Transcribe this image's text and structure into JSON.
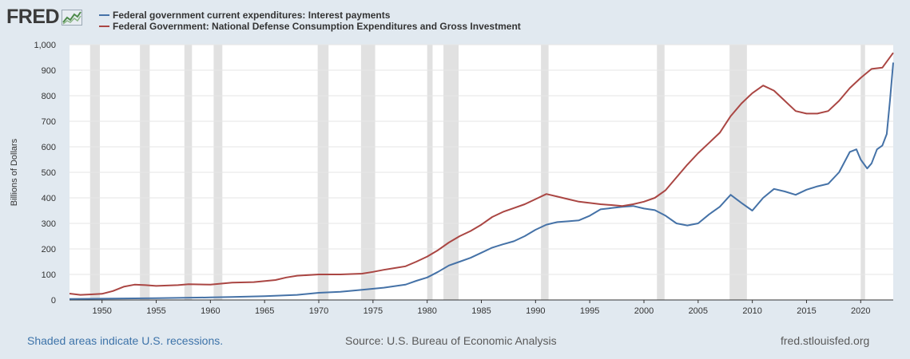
{
  "header": {
    "logo_text": "FRED"
  },
  "footer": {
    "recession_note": "Shaded areas indicate U.S. recessions.",
    "source": "Source: U.S. Bureau of Economic Analysis",
    "site": "fred.stlouisfed.org"
  },
  "colors": {
    "interest": "#4572a7",
    "defense": "#aa4643",
    "recession": "#e1e1e1",
    "link": "#3d73a9",
    "footer_gray": "#595959"
  },
  "chart_data": {
    "type": "line",
    "title": "",
    "xlabel": "",
    "ylabel": "Billions of Dollars",
    "xlim": [
      1947.0,
      2023.0
    ],
    "ylim": [
      0,
      1000
    ],
    "yticks": [
      0,
      100,
      200,
      300,
      400,
      500,
      600,
      700,
      800,
      900,
      1000
    ],
    "ytick_labels": [
      "0",
      "100",
      "200",
      "300",
      "400",
      "500",
      "600",
      "700",
      "800",
      "900",
      "1,000"
    ],
    "xticks": [
      1950,
      1955,
      1960,
      1965,
      1970,
      1975,
      1980,
      1985,
      1990,
      1995,
      2000,
      2005,
      2010,
      2015,
      2020
    ],
    "xtick_labels": [
      "1950",
      "1955",
      "1960",
      "1965",
      "1970",
      "1975",
      "1980",
      "1985",
      "1990",
      "1995",
      "2000",
      "2005",
      "2010",
      "2015",
      "2020"
    ],
    "grid": "horizontal",
    "recessions": [
      [
        1948.9,
        1949.8
      ],
      [
        1953.5,
        1954.4
      ],
      [
        1957.6,
        1958.3
      ],
      [
        1960.3,
        1961.1
      ],
      [
        1969.9,
        1970.9
      ],
      [
        1973.9,
        1975.2
      ],
      [
        1980.0,
        1980.5
      ],
      [
        1981.5,
        1982.9
      ],
      [
        1990.5,
        1991.2
      ],
      [
        2001.2,
        2001.9
      ],
      [
        2007.9,
        2009.5
      ],
      [
        2020.0,
        2020.4
      ]
    ],
    "series": [
      {
        "name": "Federal government current expenditures: Interest payments",
        "color": "#4572a7",
        "points": [
          [
            1947.0,
            4
          ],
          [
            1950,
            5
          ],
          [
            1955,
            7
          ],
          [
            1960,
            10
          ],
          [
            1962,
            12
          ],
          [
            1965,
            15
          ],
          [
            1968,
            20
          ],
          [
            1970,
            28
          ],
          [
            1972,
            32
          ],
          [
            1974,
            40
          ],
          [
            1976,
            48
          ],
          [
            1978,
            60
          ],
          [
            1979,
            75
          ],
          [
            1980,
            88
          ],
          [
            1981,
            110
          ],
          [
            1982,
            135
          ],
          [
            1983,
            150
          ],
          [
            1984,
            165
          ],
          [
            1985,
            185
          ],
          [
            1986,
            205
          ],
          [
            1987,
            218
          ],
          [
            1988,
            230
          ],
          [
            1989,
            250
          ],
          [
            1990,
            275
          ],
          [
            1991,
            295
          ],
          [
            1992,
            305
          ],
          [
            1993,
            308
          ],
          [
            1994,
            312
          ],
          [
            1995,
            330
          ],
          [
            1996,
            355
          ],
          [
            1997,
            360
          ],
          [
            1998,
            365
          ],
          [
            1999,
            368
          ],
          [
            2000,
            358
          ],
          [
            2001,
            352
          ],
          [
            2002,
            330
          ],
          [
            2003,
            300
          ],
          [
            2004,
            292
          ],
          [
            2005,
            300
          ],
          [
            2006,
            335
          ],
          [
            2007,
            365
          ],
          [
            2008,
            412
          ],
          [
            2009,
            380
          ],
          [
            2010,
            350
          ],
          [
            2011,
            400
          ],
          [
            2012,
            435
          ],
          [
            2013,
            425
          ],
          [
            2014,
            412
          ],
          [
            2015,
            432
          ],
          [
            2016,
            445
          ],
          [
            2017,
            455
          ],
          [
            2018,
            500
          ],
          [
            2019,
            580
          ],
          [
            2019.6,
            590
          ],
          [
            2020.0,
            550
          ],
          [
            2020.6,
            515
          ],
          [
            2021.0,
            535
          ],
          [
            2021.5,
            590
          ],
          [
            2022.0,
            605
          ],
          [
            2022.4,
            650
          ],
          [
            2022.7,
            780
          ],
          [
            2023.0,
            930
          ]
        ]
      },
      {
        "name": "Federal Government: National Defense Consumption Expenditures and Gross Investment",
        "color": "#aa4643",
        "points": [
          [
            1947.0,
            25
          ],
          [
            1948,
            20
          ],
          [
            1949,
            22
          ],
          [
            1950,
            24
          ],
          [
            1951,
            35
          ],
          [
            1952,
            52
          ],
          [
            1953,
            60
          ],
          [
            1954,
            58
          ],
          [
            1955,
            55
          ],
          [
            1957,
            58
          ],
          [
            1958,
            62
          ],
          [
            1960,
            60
          ],
          [
            1962,
            68
          ],
          [
            1964,
            70
          ],
          [
            1966,
            78
          ],
          [
            1967,
            88
          ],
          [
            1968,
            95
          ],
          [
            1970,
            100
          ],
          [
            1972,
            100
          ],
          [
            1974,
            103
          ],
          [
            1975,
            110
          ],
          [
            1976,
            118
          ],
          [
            1977,
            125
          ],
          [
            1978,
            132
          ],
          [
            1979,
            150
          ],
          [
            1980,
            170
          ],
          [
            1981,
            195
          ],
          [
            1982,
            225
          ],
          [
            1983,
            250
          ],
          [
            1984,
            270
          ],
          [
            1985,
            295
          ],
          [
            1986,
            325
          ],
          [
            1987,
            345
          ],
          [
            1988,
            360
          ],
          [
            1989,
            375
          ],
          [
            1990,
            395
          ],
          [
            1991,
            415
          ],
          [
            1992,
            405
          ],
          [
            1993,
            395
          ],
          [
            1994,
            385
          ],
          [
            1995,
            380
          ],
          [
            1996,
            375
          ],
          [
            1997,
            372
          ],
          [
            1998,
            368
          ],
          [
            1999,
            375
          ],
          [
            2000,
            385
          ],
          [
            2001,
            400
          ],
          [
            2002,
            430
          ],
          [
            2003,
            480
          ],
          [
            2004,
            530
          ],
          [
            2005,
            575
          ],
          [
            2006,
            615
          ],
          [
            2007,
            655
          ],
          [
            2008,
            720
          ],
          [
            2009,
            770
          ],
          [
            2010,
            810
          ],
          [
            2011,
            840
          ],
          [
            2012,
            820
          ],
          [
            2013,
            780
          ],
          [
            2014,
            740
          ],
          [
            2015,
            730
          ],
          [
            2016,
            730
          ],
          [
            2017,
            740
          ],
          [
            2018,
            780
          ],
          [
            2019,
            830
          ],
          [
            2020,
            870
          ],
          [
            2021,
            905
          ],
          [
            2022,
            910
          ],
          [
            2023.0,
            968
          ]
        ]
      }
    ]
  }
}
